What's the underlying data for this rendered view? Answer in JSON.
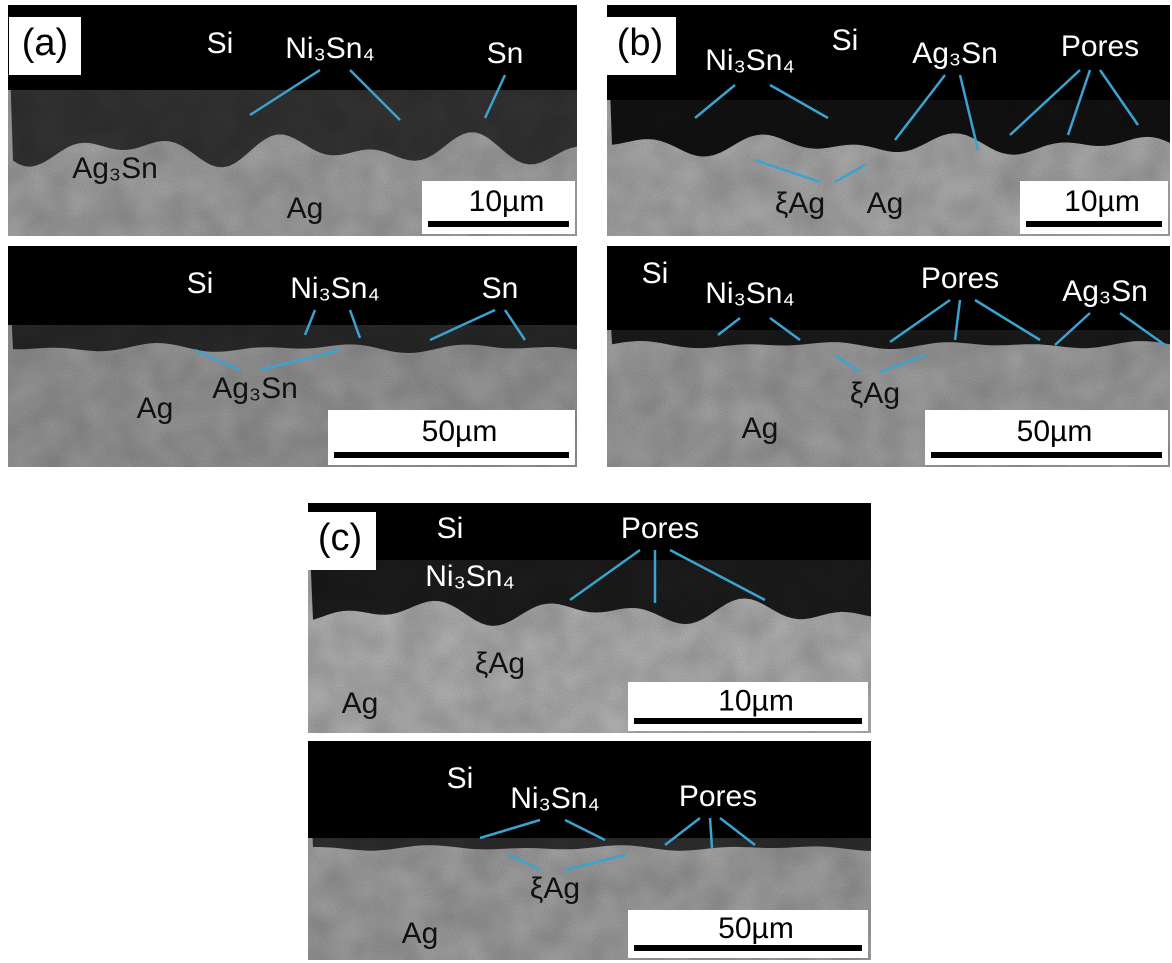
{
  "panels": [
    {
      "label": "(a)",
      "images": [
        {
          "labels": [
            "Si",
            "Ni₃Sn₄",
            "Sn",
            "Ag₃Sn",
            "Ag"
          ],
          "scale_bar": "10µm"
        },
        {
          "labels": [
            "Si",
            "Ni₃Sn₄",
            "Sn",
            "Ag₃Sn",
            "Ag"
          ],
          "scale_bar": "50µm"
        }
      ]
    },
    {
      "label": "(b)",
      "images": [
        {
          "labels": [
            "Ni₃Sn₄",
            "Si",
            "Ag₃Sn",
            "Pores",
            "ξAg",
            "Ag"
          ],
          "scale_bar": "10µm"
        },
        {
          "labels": [
            "Si",
            "Ni₃Sn₄",
            "Pores",
            "Ag₃Sn",
            "ξAg",
            "Ag"
          ],
          "scale_bar": "50µm"
        }
      ]
    },
    {
      "label": "(c)",
      "images": [
        {
          "labels": [
            "Si",
            "Pores",
            "Ni₃Sn₄",
            "ξAg",
            "Ag"
          ],
          "scale_bar": "10µm"
        },
        {
          "labels": [
            "Si",
            "Ni₃Sn₄",
            "Pores",
            "ξAg",
            "Ag"
          ],
          "scale_bar": "50µm"
        }
      ]
    }
  ]
}
